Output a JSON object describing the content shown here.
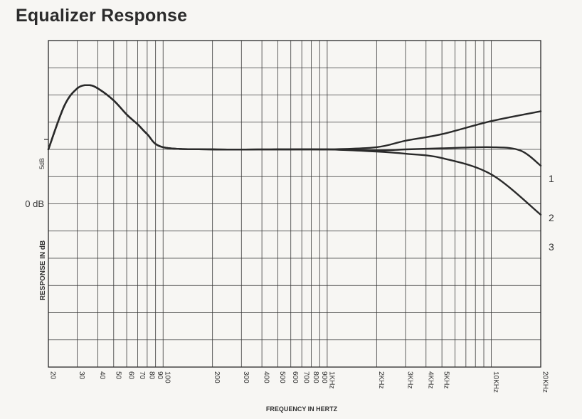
{
  "title": "Equalizer Response",
  "chart_data": {
    "type": "line",
    "title": "Equalizer Response",
    "xlabel": "FREQUENCY IN HERTZ",
    "ylabel": "RESPONSE IN dB",
    "x_scale": "log",
    "xlim": [
      20,
      20000
    ],
    "ylim": [
      -25,
      5
    ],
    "y_tick_labels": [
      "5dB",
      "0 dB"
    ],
    "x_tick_labels": [
      {
        "value": 20,
        "label": "20"
      },
      {
        "value": 30,
        "label": "30"
      },
      {
        "value": 40,
        "label": "40"
      },
      {
        "value": 50,
        "label": "50"
      },
      {
        "value": 60,
        "label": "60"
      },
      {
        "value": 70,
        "label": "70"
      },
      {
        "value": 80,
        "label": "80"
      },
      {
        "value": 90,
        "label": "90"
      },
      {
        "value": 100,
        "label": "100"
      },
      {
        "value": 200,
        "label": "200"
      },
      {
        "value": 300,
        "label": "300"
      },
      {
        "value": 400,
        "label": "400"
      },
      {
        "value": 500,
        "label": "500"
      },
      {
        "value": 600,
        "label": "600"
      },
      {
        "value": 700,
        "label": "700"
      },
      {
        "value": 800,
        "label": "800"
      },
      {
        "value": 900,
        "label": "900"
      },
      {
        "value": 1000,
        "label": "1KHz"
      },
      {
        "value": 2000,
        "label": "2KHz"
      },
      {
        "value": 3000,
        "label": "3KHz"
      },
      {
        "value": 4000,
        "label": "4KHz"
      },
      {
        "value": 5000,
        "label": "5KHz"
      },
      {
        "value": 10000,
        "label": "10KHz"
      },
      {
        "value": 20000,
        "label": "20KHz"
      }
    ],
    "grid": true,
    "series": [
      {
        "name": "1",
        "x": [
          20,
          25,
          30,
          35,
          40,
          50,
          60,
          70,
          80,
          100,
          200,
          500,
          1000,
          2000,
          3000,
          5000,
          10000,
          20000
        ],
        "y": [
          -5,
          -1,
          0.6,
          0.9,
          0.6,
          -0.5,
          -1.8,
          -2.7,
          -3.6,
          -4.8,
          -5,
          -5,
          -5,
          -4.8,
          -4.2,
          -3.6,
          -2.4,
          -1.5
        ]
      },
      {
        "name": "2",
        "x": [
          20,
          25,
          30,
          35,
          40,
          50,
          60,
          70,
          80,
          100,
          200,
          500,
          1000,
          2000,
          3000,
          5000,
          10000,
          15000,
          20000
        ],
        "y": [
          -5,
          -1,
          0.6,
          0.9,
          0.6,
          -0.5,
          -1.8,
          -2.7,
          -3.6,
          -4.8,
          -5,
          -5,
          -5,
          -5.1,
          -5,
          -4.9,
          -4.8,
          -5.1,
          -6.5
        ]
      },
      {
        "name": "3",
        "x": [
          20,
          25,
          30,
          35,
          40,
          50,
          60,
          70,
          80,
          100,
          200,
          500,
          1000,
          2000,
          3000,
          5000,
          10000,
          20000
        ],
        "y": [
          -5,
          -1,
          0.6,
          0.9,
          0.6,
          -0.5,
          -1.8,
          -2.7,
          -3.6,
          -4.8,
          -5,
          -5,
          -5,
          -5.2,
          -5.4,
          -5.8,
          -7.3,
          -11
        ]
      }
    ],
    "series_colors": [
      "#2a2a2a",
      "#2a2a2a",
      "#2a2a2a"
    ]
  }
}
